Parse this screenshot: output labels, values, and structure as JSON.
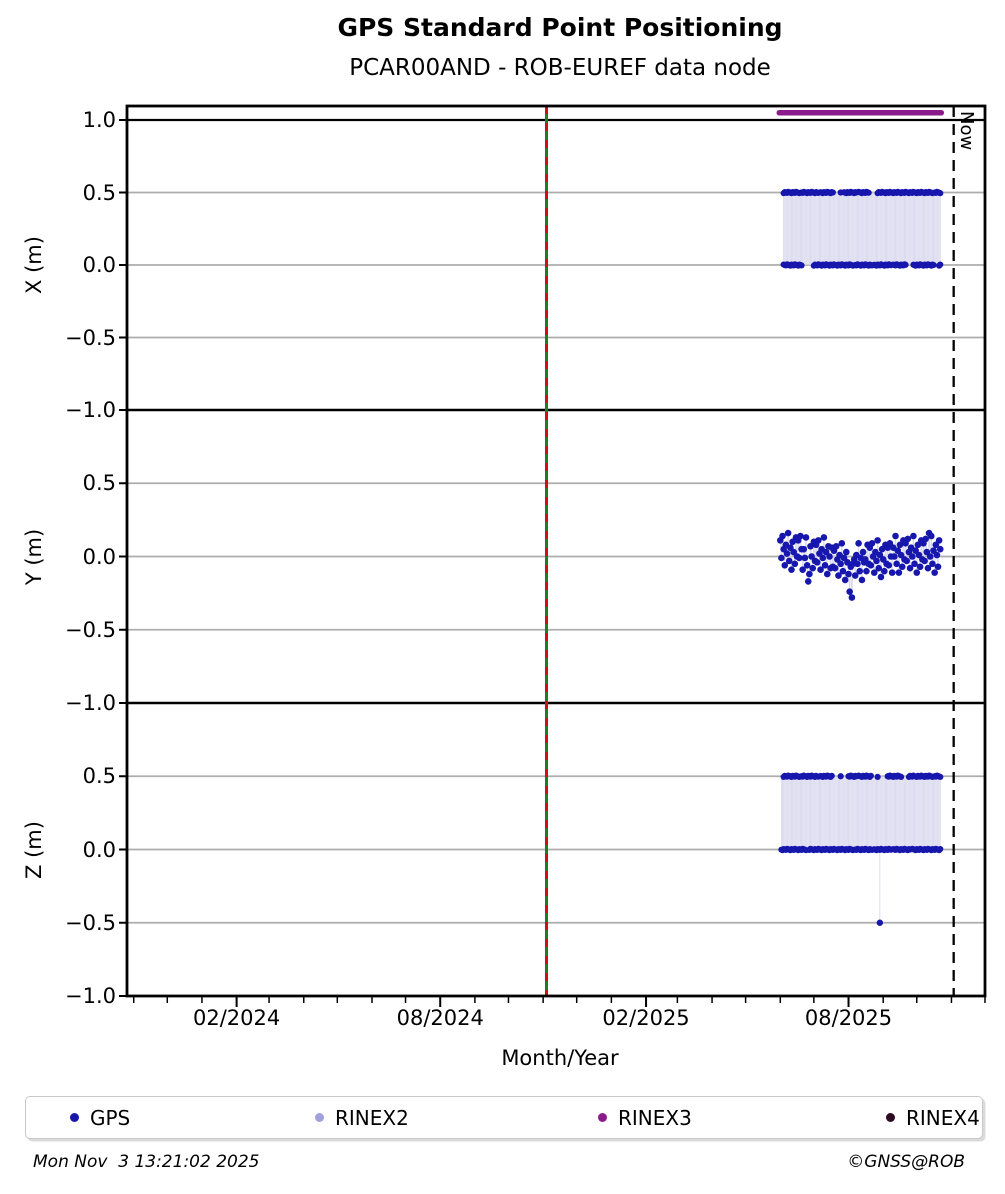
{
  "header": {
    "title": "GPS Standard Point Positioning",
    "subtitle": "PCAR00AND - ROB-EUREF data node"
  },
  "legend": {
    "items": [
      {
        "label": "GPS",
        "color": "#1717ad"
      },
      {
        "label": "RINEX2",
        "color": "#a0a0dc"
      },
      {
        "label": "RINEX3",
        "color": "#8b1a8b"
      },
      {
        "label": "RINEX4",
        "color": "#2e0b24"
      }
    ]
  },
  "footer": {
    "timestamp": "Mon Nov  3 13:21:02 2025",
    "credit": "©GNSS@ROB"
  },
  "chart_data": {
    "type": "scatter",
    "title": "GPS Standard Point Positioning",
    "subtitle": "PCAR00AND - ROB-EUREF data node",
    "xlabel": "Month/Year",
    "grid_color": "#adadad",
    "connector_color": "#d8d8ee",
    "x_axis": {
      "start": "2023-10-26",
      "end": "2025-12-01",
      "major_ticks": [
        {
          "date": "2024-02-01",
          "label": "02/2024"
        },
        {
          "date": "2024-08-01",
          "label": "08/2024"
        },
        {
          "date": "2025-02-01",
          "label": "02/2025"
        },
        {
          "date": "2025-08-01",
          "label": "08/2025"
        }
      ],
      "minor_ticks": "monthly"
    },
    "now_line": {
      "date": "2025-11-03",
      "label": "Now",
      "style": "black-dashed"
    },
    "event_line": {
      "date": "2024-11-04",
      "solid_color": "#1f7d1f",
      "dash_color": "#d01010"
    },
    "data_window": {
      "start": "2025-06-01",
      "days": 144
    },
    "panels": [
      {
        "ylabel": "X (m)",
        "ylim": [
          -1.0,
          1.1
        ],
        "yticks": [
          {
            "v": 1.0,
            "label": "1.0"
          },
          {
            "v": 0.5,
            "label": "0.5"
          },
          {
            "v": 0.0,
            "label": "0.0"
          },
          {
            "v": -0.5,
            "label": "−0.5"
          },
          {
            "v": -1.0,
            "label": "−1.0"
          }
        ],
        "series": "GPS",
        "value_levels": [
          0.5,
          0.0
        ],
        "upper_runs": [
          [
            3,
            47
          ],
          [
            54,
            54
          ],
          [
            57,
            79
          ],
          [
            86,
            143
          ]
        ],
        "lower_runs": [
          [
            3,
            19
          ],
          [
            30,
            112
          ],
          [
            119,
            137
          ],
          [
            142,
            143
          ]
        ],
        "rinex3_bar": {
          "y": 1.05,
          "day_start": 0,
          "day_end": 143
        }
      },
      {
        "ylabel": "Y (m)",
        "ylim": [
          -1.0,
          1.0
        ],
        "yticks": [
          {
            "v": 0.5,
            "label": "0.5"
          },
          {
            "v": 0.0,
            "label": "0.0"
          },
          {
            "v": -0.5,
            "label": "−0.5"
          },
          {
            "v": -1.0,
            "label": "−1.0"
          }
        ],
        "series": "GPS",
        "daily_values": [
          0.11,
          -0.01,
          0.14,
          0.05,
          -0.06,
          0.08,
          0.02,
          0.16,
          -0.03,
          0.06,
          -0.09,
          0.1,
          0.03,
          -0.05,
          0.13,
          0.0,
          0.11,
          -0.01,
          0.14,
          0.05,
          -0.09,
          0.05,
          -0.01,
          0.13,
          -0.06,
          -0.17,
          -0.12,
          0.07,
          0.0,
          -0.08,
          0.1,
          -0.03,
          0.08,
          -0.04,
          0.11,
          0.02,
          -0.09,
          0.05,
          -0.01,
          0.13,
          -0.06,
          0.03,
          -0.12,
          0.07,
          0.0,
          -0.08,
          0.06,
          -0.07,
          0.04,
          -0.08,
          0.07,
          -0.02,
          -0.13,
          0.01,
          -0.05,
          0.09,
          -0.1,
          -0.01,
          -0.16,
          0.03,
          -0.04,
          -0.12,
          -0.24,
          -0.07,
          -0.28,
          -0.05,
          -0.02,
          -0.13,
          0.01,
          -0.05,
          0.09,
          -0.1,
          -0.01,
          -0.16,
          0.03,
          -0.04,
          -0.02,
          -0.1,
          0.08,
          -0.05,
          0.06,
          -0.06,
          0.09,
          0.0,
          -0.11,
          0.03,
          -0.03,
          0.11,
          -0.08,
          0.01,
          -0.14,
          0.05,
          -0.02,
          -0.1,
          0.08,
          -0.05,
          0.06,
          -0.06,
          0.09,
          0.0,
          -0.11,
          0.06,
          0.0,
          0.14,
          -0.05,
          0.04,
          -0.11,
          0.08,
          0.01,
          -0.07,
          0.11,
          -0.02,
          0.09,
          -0.03,
          0.12,
          0.03,
          -0.08,
          0.06,
          0.0,
          0.14,
          -0.05,
          0.04,
          -0.11,
          0.08,
          0.01,
          -0.07,
          0.11,
          -0.02,
          0.09,
          -0.03,
          0.12,
          0.03,
          -0.08,
          0.16,
          0.0,
          0.14,
          -0.05,
          0.04,
          -0.11,
          0.08,
          0.01,
          -0.07,
          0.11,
          0.05
        ]
      },
      {
        "ylabel": "Z (m)",
        "ylim": [
          -1.0,
          1.0
        ],
        "yticks": [
          {
            "v": 0.5,
            "label": "0.5"
          },
          {
            "v": 0.0,
            "label": "0.0"
          },
          {
            "v": -0.5,
            "label": "−0.5"
          },
          {
            "v": -1.0,
            "label": "−1.0"
          }
        ],
        "series": "GPS",
        "value_levels": [
          0.5,
          0.0
        ],
        "upper_runs": [
          [
            3,
            32
          ],
          [
            34,
            46
          ],
          [
            54,
            54
          ],
          [
            61,
            81
          ],
          [
            87,
            87
          ],
          [
            96,
            108
          ],
          [
            115,
            143
          ]
        ],
        "lower_runs": [
          [
            1,
            23
          ],
          [
            26,
            143
          ]
        ],
        "outliers": [
          {
            "day": 89,
            "y": -0.5
          }
        ]
      }
    ]
  }
}
